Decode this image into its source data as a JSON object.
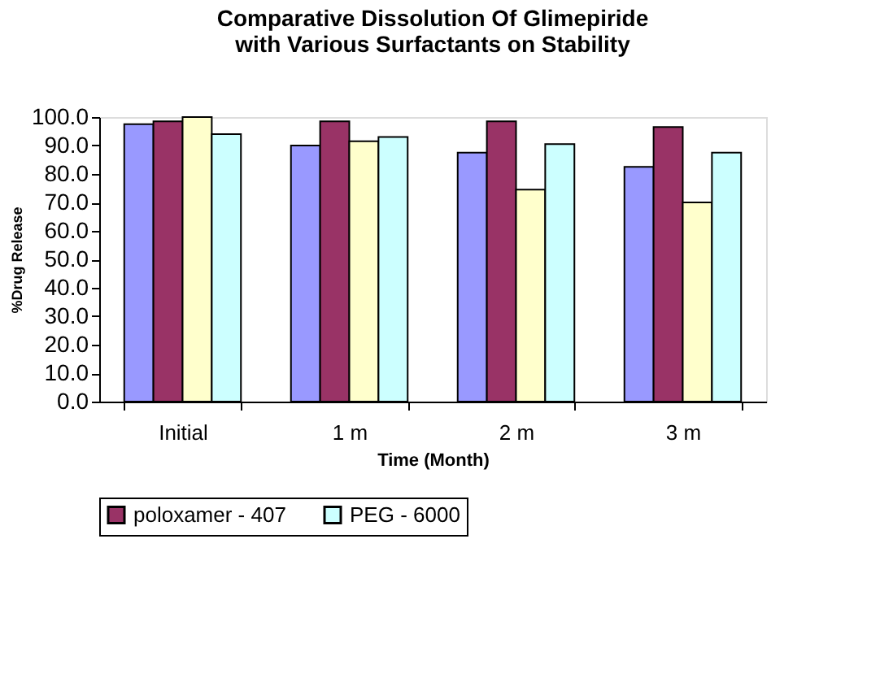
{
  "chart_data": {
    "type": "bar",
    "title": "Comparative Dissolution Of Glimepiride\nwith Various Surfactants on Stability",
    "xlabel": "Time  (Month)",
    "ylabel": "%Drug Release",
    "categories": [
      "Initial",
      "1 m",
      "2 m",
      "3 m"
    ],
    "series": [
      {
        "color": "#9999ff",
        "values": [
          97.5,
          90.0,
          87.5,
          82.5
        ]
      },
      {
        "name": "poloxamer - 407",
        "color": "#993366",
        "values": [
          98.5,
          98.5,
          98.5,
          96.5
        ]
      },
      {
        "color": "#ffffcc",
        "values": [
          100.0,
          91.5,
          74.5,
          70.0
        ]
      },
      {
        "name": "PEG - 6000",
        "color": "#ccffff",
        "values": [
          94.0,
          93.0,
          90.5,
          87.5
        ]
      }
    ],
    "ylim": [
      0,
      100
    ],
    "yticks": [
      {
        "value": 0,
        "label": "0.0"
      },
      {
        "value": 10,
        "label": "10.0"
      },
      {
        "value": 20,
        "label": "20.0"
      },
      {
        "value": 30,
        "label": "30.0"
      },
      {
        "value": 40,
        "label": "40.0"
      },
      {
        "value": 50,
        "label": "50.0"
      },
      {
        "value": 60,
        "label": "60.0"
      },
      {
        "value": 70,
        "label": "70.0"
      },
      {
        "value": 80,
        "label": "80.0"
      },
      {
        "value": 90,
        "label": "90.0"
      },
      {
        "value": 100,
        "label": "100.0"
      }
    ],
    "grid": false,
    "legend": "bottom"
  }
}
